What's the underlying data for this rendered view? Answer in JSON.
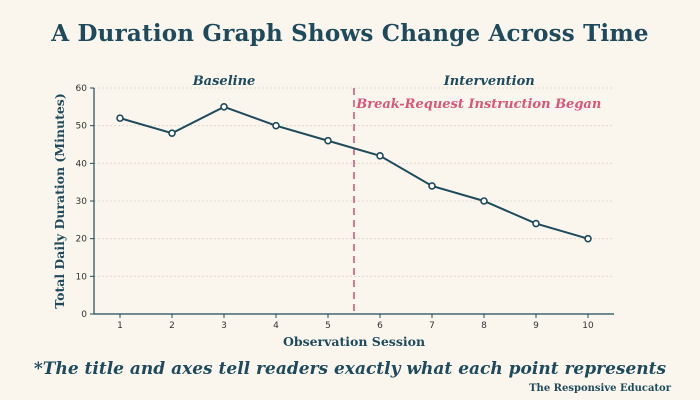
{
  "chart_data": {
    "type": "line",
    "title": "A Duration Graph Shows Change Across Time",
    "xlabel": "Observation Session",
    "ylabel": "Total Daily Duration (Minutes)",
    "x": [
      1,
      2,
      3,
      4,
      5,
      6,
      7,
      8,
      9,
      10
    ],
    "series": [
      {
        "values": [
          52,
          48,
          55,
          50,
          46,
          42,
          34,
          30,
          24,
          20
        ]
      }
    ],
    "xlim": [
      0.5,
      10.5
    ],
    "ylim": [
      0,
      60
    ],
    "yticks": [
      0,
      10,
      20,
      30,
      40,
      50,
      60
    ],
    "grid": "horizontal dotted",
    "phase_change": {
      "x": 5.5,
      "left_label": "Baseline",
      "right_label": "Intervention",
      "note": "Break-Request Instruction Began"
    },
    "colors": {
      "line": "#1e4a5c",
      "marker_fill": "#ffffff",
      "phase_line": "#d9577a",
      "background": "#faf6ee"
    }
  },
  "footnote": "*The title and axes tell readers exactly what each point represents",
  "credit": "The Responsive Educator"
}
